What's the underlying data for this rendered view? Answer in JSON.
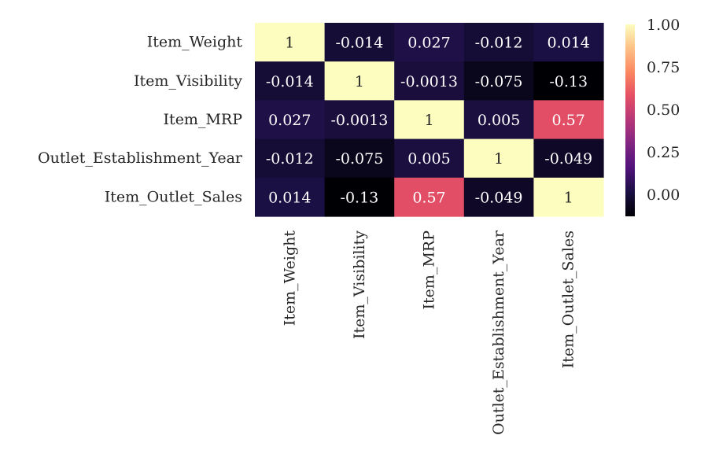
{
  "chart_data": {
    "type": "heatmap",
    "title": "",
    "rows": [
      "Item_Weight",
      "Item_Visibility",
      "Item_MRP",
      "Outlet_Establishment_Year",
      "Item_Outlet_Sales"
    ],
    "columns": [
      "Item_Weight",
      "Item_Visibility",
      "Item_MRP",
      "Outlet_Establishment_Year",
      "Item_Outlet_Sales"
    ],
    "values": [
      [
        1,
        -0.014,
        0.027,
        -0.012,
        0.014
      ],
      [
        -0.014,
        1,
        -0.0013,
        -0.075,
        -0.13
      ],
      [
        0.027,
        -0.0013,
        1,
        0.005,
        0.57
      ],
      [
        -0.012,
        -0.075,
        0.005,
        1,
        -0.049
      ],
      [
        0.014,
        -0.13,
        0.57,
        -0.049,
        1
      ]
    ],
    "annotations": [
      [
        "1",
        "-0.014",
        "0.027",
        "-0.012",
        "0.014"
      ],
      [
        "-0.014",
        "1",
        "-0.0013",
        "-0.075",
        "-0.13"
      ],
      [
        "0.027",
        "-0.0013",
        "1",
        "0.005",
        "0.57"
      ],
      [
        "-0.012",
        "-0.075",
        "0.005",
        "1",
        "-0.049"
      ],
      [
        "0.014",
        "-0.13",
        "0.57",
        "-0.049",
        "1"
      ]
    ],
    "colormap": "magma",
    "vmin": -0.13,
    "vmax": 1,
    "colorbar": {
      "ticks": [
        0.0,
        0.25,
        0.5,
        0.75,
        1.0
      ],
      "tick_labels": [
        "0.00",
        "0.25",
        "0.50",
        "0.75",
        "1.00"
      ],
      "placement": "right"
    }
  }
}
